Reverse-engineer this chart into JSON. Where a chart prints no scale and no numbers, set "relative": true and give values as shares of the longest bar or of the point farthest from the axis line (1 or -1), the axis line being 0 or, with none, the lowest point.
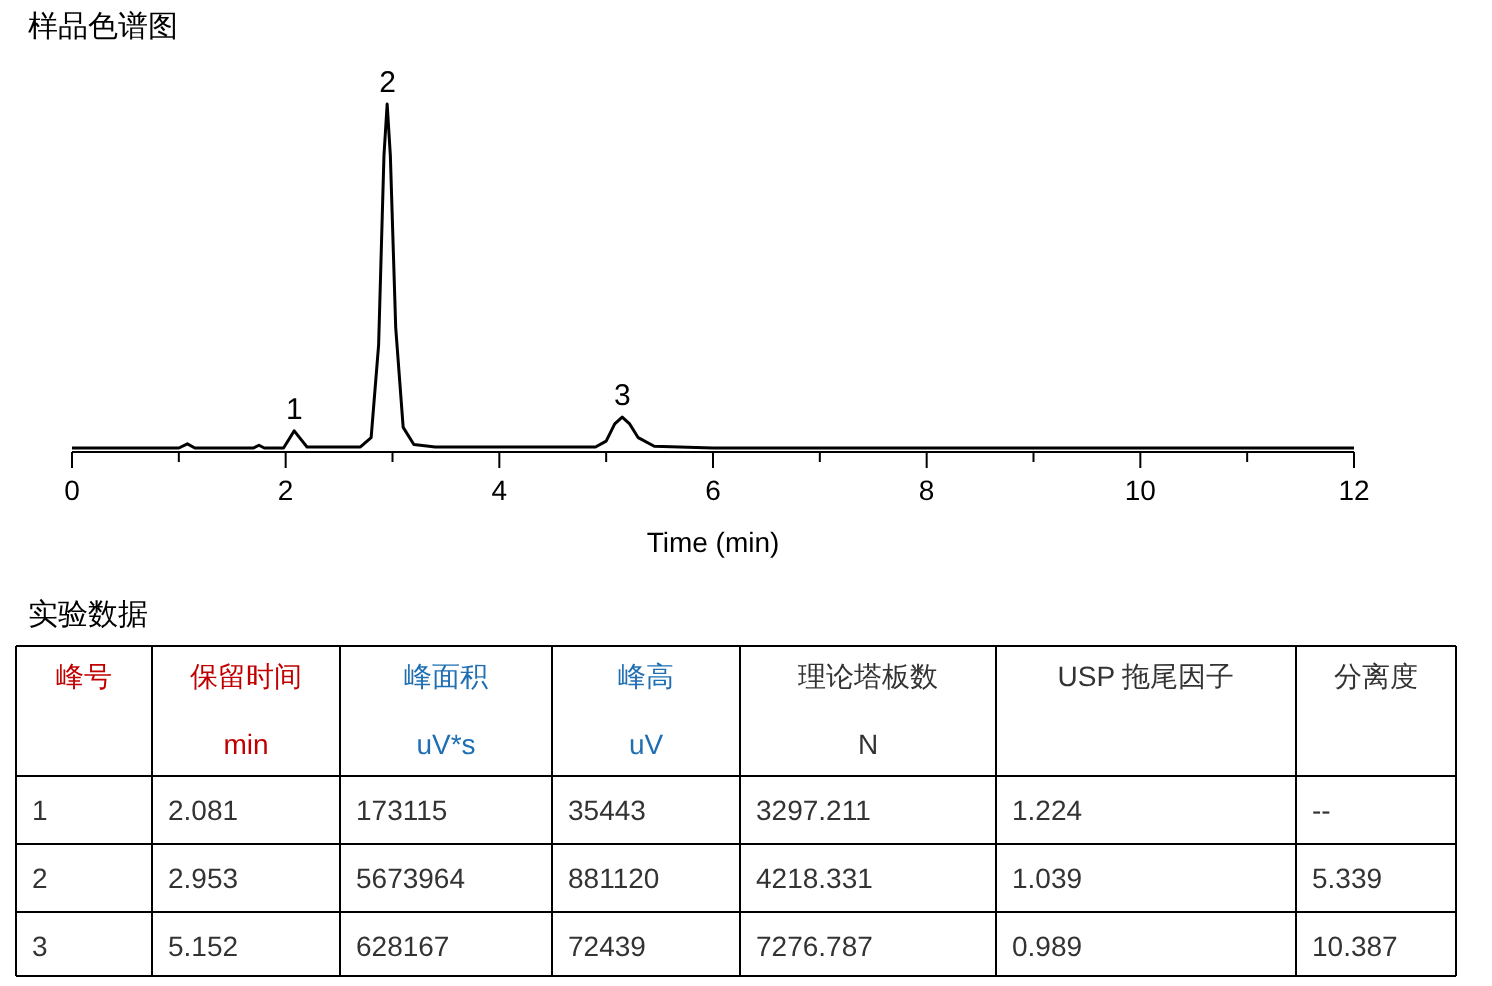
{
  "chart_data": [
    {
      "type": "line",
      "title": "样品色谱图",
      "xlabel": "Time (min)",
      "relative": true,
      "color": "#000000",
      "line_style": "solid",
      "marker": "none",
      "x": [
        0,
        1.0,
        1.08,
        1.15,
        1.7,
        1.75,
        1.8,
        1.98,
        2.04,
        2.08,
        2.13,
        2.2,
        2.7,
        2.8,
        2.87,
        2.92,
        2.95,
        2.98,
        3.03,
        3.1,
        3.2,
        3.4,
        4.9,
        5.0,
        5.08,
        5.15,
        5.22,
        5.3,
        5.45,
        6,
        12
      ],
      "values": [
        0,
        0,
        0.012,
        0,
        0,
        0.008,
        0,
        0,
        0.03,
        0.05,
        0.03,
        0.003,
        0.003,
        0.03,
        0.3,
        0.85,
        1,
        0.85,
        0.35,
        0.06,
        0.01,
        0.003,
        0.003,
        0.02,
        0.07,
        0.09,
        0.07,
        0.03,
        0.005,
        0,
        0
      ],
      "xlim": [
        0,
        12
      ],
      "xticks": [
        0,
        {
          "value": 1,
          "label": null
        },
        2,
        {
          "value": 3,
          "label": null
        },
        4,
        {
          "value": 5,
          "label": null
        },
        6,
        {
          "value": 7,
          "label": null
        },
        8,
        {
          "value": 9,
          "label": null
        },
        10,
        {
          "value": 11,
          "label": null
        },
        12
      ],
      "annotations": [
        {
          "text": "1",
          "x": 2.081,
          "y": 0.05
        },
        {
          "text": "2",
          "x": 2.953,
          "y": 1
        },
        {
          "text": "3",
          "x": 5.152,
          "y": 0.09
        }
      ]
    },
    {
      "type": "other",
      "title": "实验数据",
      "annotations": [
        "峰号",
        "保留时间\nmin",
        "峰面积\nuV*s",
        "峰高\nuV",
        "理论塔板数\nN",
        "USP 拖尾因子",
        "分离度",
        "1",
        "2.081",
        "173115",
        "35443",
        "3297.211",
        "1.224",
        "--",
        "2",
        "2.953",
        "5673964",
        "881120",
        "4218.331",
        "1.039",
        "5.339",
        "3",
        "5.152",
        "628167",
        "72439",
        "7276.787",
        "0.989",
        "10.387"
      ]
    }
  ]
}
